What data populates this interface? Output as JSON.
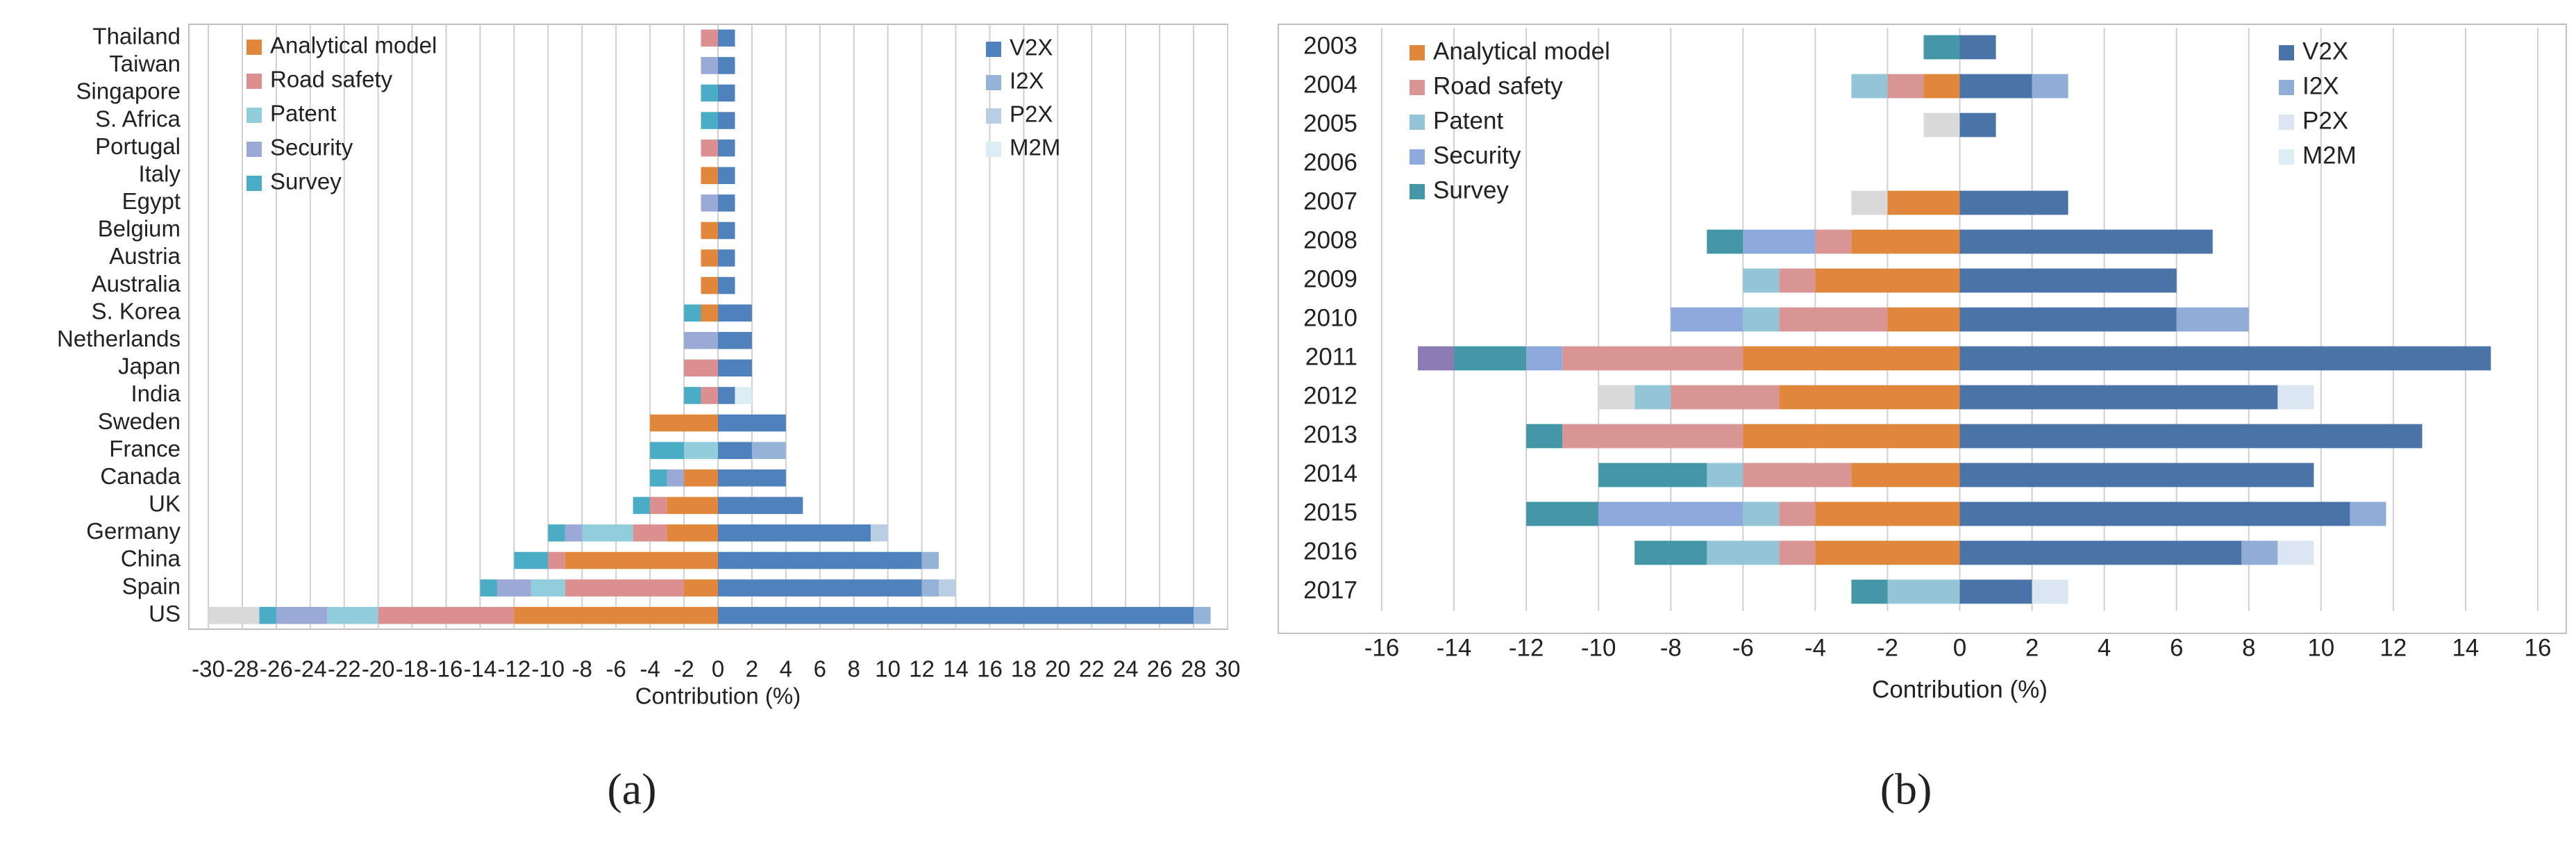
{
  "chart_data": [
    {
      "type": "bar",
      "orientation": "horizontal",
      "stacked": true,
      "caption": "(a)",
      "xlabel": "Contribution (%)",
      "categories": [
        "Thailand",
        "Taiwan",
        "Singapore",
        "S. Africa",
        "Portugal",
        "Italy",
        "Egypt",
        "Belgium",
        "Austria",
        "Australia",
        "S. Korea",
        "Netherlands",
        "Japan",
        "India",
        "Sweden",
        "France",
        "Canada",
        "UK",
        "Germany",
        "China",
        "Spain",
        "US"
      ],
      "series": [
        {
          "name": "V2X",
          "color": "#4f81bd",
          "values": [
            1,
            1,
            1,
            1,
            1,
            1,
            1,
            1,
            1,
            1,
            2,
            2,
            2,
            1,
            4,
            2,
            4,
            5,
            9,
            12,
            12,
            28
          ]
        },
        {
          "name": "I2X",
          "color": "#95b3d7",
          "values": [
            null,
            null,
            null,
            null,
            null,
            null,
            null,
            null,
            null,
            null,
            null,
            null,
            null,
            null,
            null,
            2,
            null,
            null,
            null,
            1,
            1,
            1
          ]
        },
        {
          "name": "P2X",
          "color": "#b9cde5",
          "values": [
            null,
            null,
            null,
            null,
            null,
            null,
            null,
            null,
            null,
            null,
            null,
            null,
            null,
            null,
            null,
            null,
            null,
            null,
            1,
            null,
            1,
            null
          ]
        },
        {
          "name": "M2M",
          "color": "#dbeef4",
          "values": [
            null,
            null,
            null,
            null,
            null,
            null,
            null,
            null,
            null,
            null,
            null,
            null,
            null,
            1,
            null,
            null,
            null,
            null,
            null,
            null,
            null,
            null
          ]
        },
        {
          "name": "Analytical model",
          "color": "#e0873b",
          "values": [
            null,
            null,
            null,
            null,
            null,
            -1,
            null,
            -1,
            -1,
            -1,
            -1,
            null,
            null,
            null,
            -4,
            null,
            -2,
            -3,
            -3,
            -9,
            -2,
            -12
          ]
        },
        {
          "name": "Road safety",
          "color": "#db8f8f",
          "values": [
            -1,
            null,
            null,
            null,
            -1,
            null,
            null,
            null,
            null,
            null,
            null,
            null,
            -2,
            -1,
            null,
            null,
            null,
            -1,
            -2,
            -1,
            -7,
            -8
          ]
        },
        {
          "name": "Patent",
          "color": "#92cddc",
          "values": [
            null,
            null,
            null,
            null,
            null,
            null,
            null,
            null,
            null,
            null,
            null,
            null,
            null,
            null,
            null,
            -2,
            null,
            null,
            -3,
            null,
            -2,
            -3
          ]
        },
        {
          "name": "Security",
          "color": "#9aa9d6",
          "values": [
            null,
            -1,
            null,
            null,
            null,
            null,
            -1,
            null,
            null,
            null,
            null,
            -2,
            null,
            null,
            null,
            null,
            -1,
            null,
            -1,
            null,
            -2,
            -3
          ]
        },
        {
          "name": "Survey",
          "color": "#4bacc6",
          "values": [
            null,
            null,
            -1,
            -1,
            null,
            null,
            null,
            null,
            null,
            null,
            -1,
            null,
            null,
            -1,
            null,
            -2,
            -1,
            -1,
            -1,
            -2,
            -1,
            -1
          ]
        },
        {
          "color": "#d9d9d9",
          "values": [
            null,
            null,
            null,
            null,
            null,
            null,
            null,
            null,
            null,
            null,
            null,
            null,
            null,
            null,
            null,
            null,
            null,
            null,
            null,
            null,
            null,
            -3
          ]
        }
      ],
      "xlim": [
        -30,
        30
      ],
      "xticks": [
        -30,
        -28,
        -26,
        -24,
        -22,
        -20,
        -18,
        -16,
        -14,
        -12,
        -10,
        -8,
        -6,
        -4,
        -2,
        0,
        2,
        4,
        6,
        8,
        10,
        12,
        14,
        16,
        18,
        20,
        22,
        24,
        26,
        28,
        30
      ],
      "grid": true
    },
    {
      "type": "bar",
      "orientation": "horizontal",
      "stacked": true,
      "caption": "(b)",
      "xlabel": "Contribution (%)",
      "categories": [
        "2003",
        "2004",
        "2005",
        "2006",
        "2007",
        "2008",
        "2009",
        "2010",
        "2011",
        "2012",
        "2013",
        "2014",
        "2015",
        "2016",
        "2017"
      ],
      "series": [
        {
          "name": "V2X",
          "color": "#4a74a8",
          "values": [
            1,
            2,
            1,
            null,
            3,
            7,
            6,
            6,
            14.7,
            8.8,
            12.8,
            9.8,
            10.8,
            7.8,
            2
          ]
        },
        {
          "name": "I2X",
          "color": "#8fadd6",
          "values": [
            null,
            1,
            null,
            null,
            null,
            null,
            null,
            2,
            null,
            null,
            null,
            null,
            1,
            1,
            null
          ]
        },
        {
          "name": "P2X",
          "color": "#dce6f2",
          "values": [
            null,
            null,
            null,
            null,
            null,
            null,
            null,
            null,
            null,
            1,
            null,
            null,
            null,
            1,
            1
          ]
        },
        {
          "name": "M2M",
          "color": "#daeef3",
          "values": [
            null,
            null,
            null,
            null,
            null,
            null,
            null,
            null,
            null,
            null,
            null,
            null,
            null,
            null,
            null
          ]
        },
        {
          "name": "Analytical model",
          "color": "#e0873b",
          "values": [
            null,
            -1,
            null,
            null,
            -2,
            -3,
            -4,
            -2,
            -6,
            -5,
            -6,
            -3,
            -4,
            -4,
            null
          ]
        },
        {
          "name": "Road safety",
          "color": "#d99594",
          "values": [
            null,
            -1,
            null,
            null,
            null,
            -1,
            -1,
            -3,
            -5,
            -3,
            -5,
            -3,
            -1,
            -1,
            null
          ]
        },
        {
          "name": "Patent",
          "color": "#93c5d6",
          "values": [
            null,
            -1,
            null,
            null,
            null,
            null,
            -1,
            -1,
            null,
            -1,
            null,
            -1,
            -1,
            -2,
            -2
          ]
        },
        {
          "name": "Security",
          "color": "#8ea9db",
          "values": [
            null,
            null,
            null,
            null,
            null,
            -2,
            null,
            -2,
            -1,
            null,
            null,
            null,
            -4,
            null,
            null
          ]
        },
        {
          "name": "Survey",
          "color": "#4596a7",
          "values": [
            -1,
            null,
            null,
            null,
            null,
            -1,
            null,
            null,
            -2,
            null,
            -1,
            -3,
            -2,
            -2,
            -1
          ]
        },
        {
          "color": "#d9d9d9",
          "values": [
            null,
            null,
            -1,
            null,
            -1,
            null,
            null,
            null,
            null,
            -1,
            null,
            null,
            null,
            null,
            null
          ]
        },
        {
          "color": "#8c7bb5",
          "values": [
            null,
            null,
            null,
            null,
            null,
            null,
            null,
            null,
            -1,
            null,
            null,
            null,
            null,
            null,
            null
          ]
        }
      ],
      "xlim": [
        -16,
        16
      ],
      "xticks": [
        -16,
        -14,
        -12,
        -10,
        -8,
        -6,
        -4,
        -2,
        0,
        2,
        4,
        6,
        8,
        10,
        12,
        14,
        16
      ],
      "grid": true
    }
  ]
}
